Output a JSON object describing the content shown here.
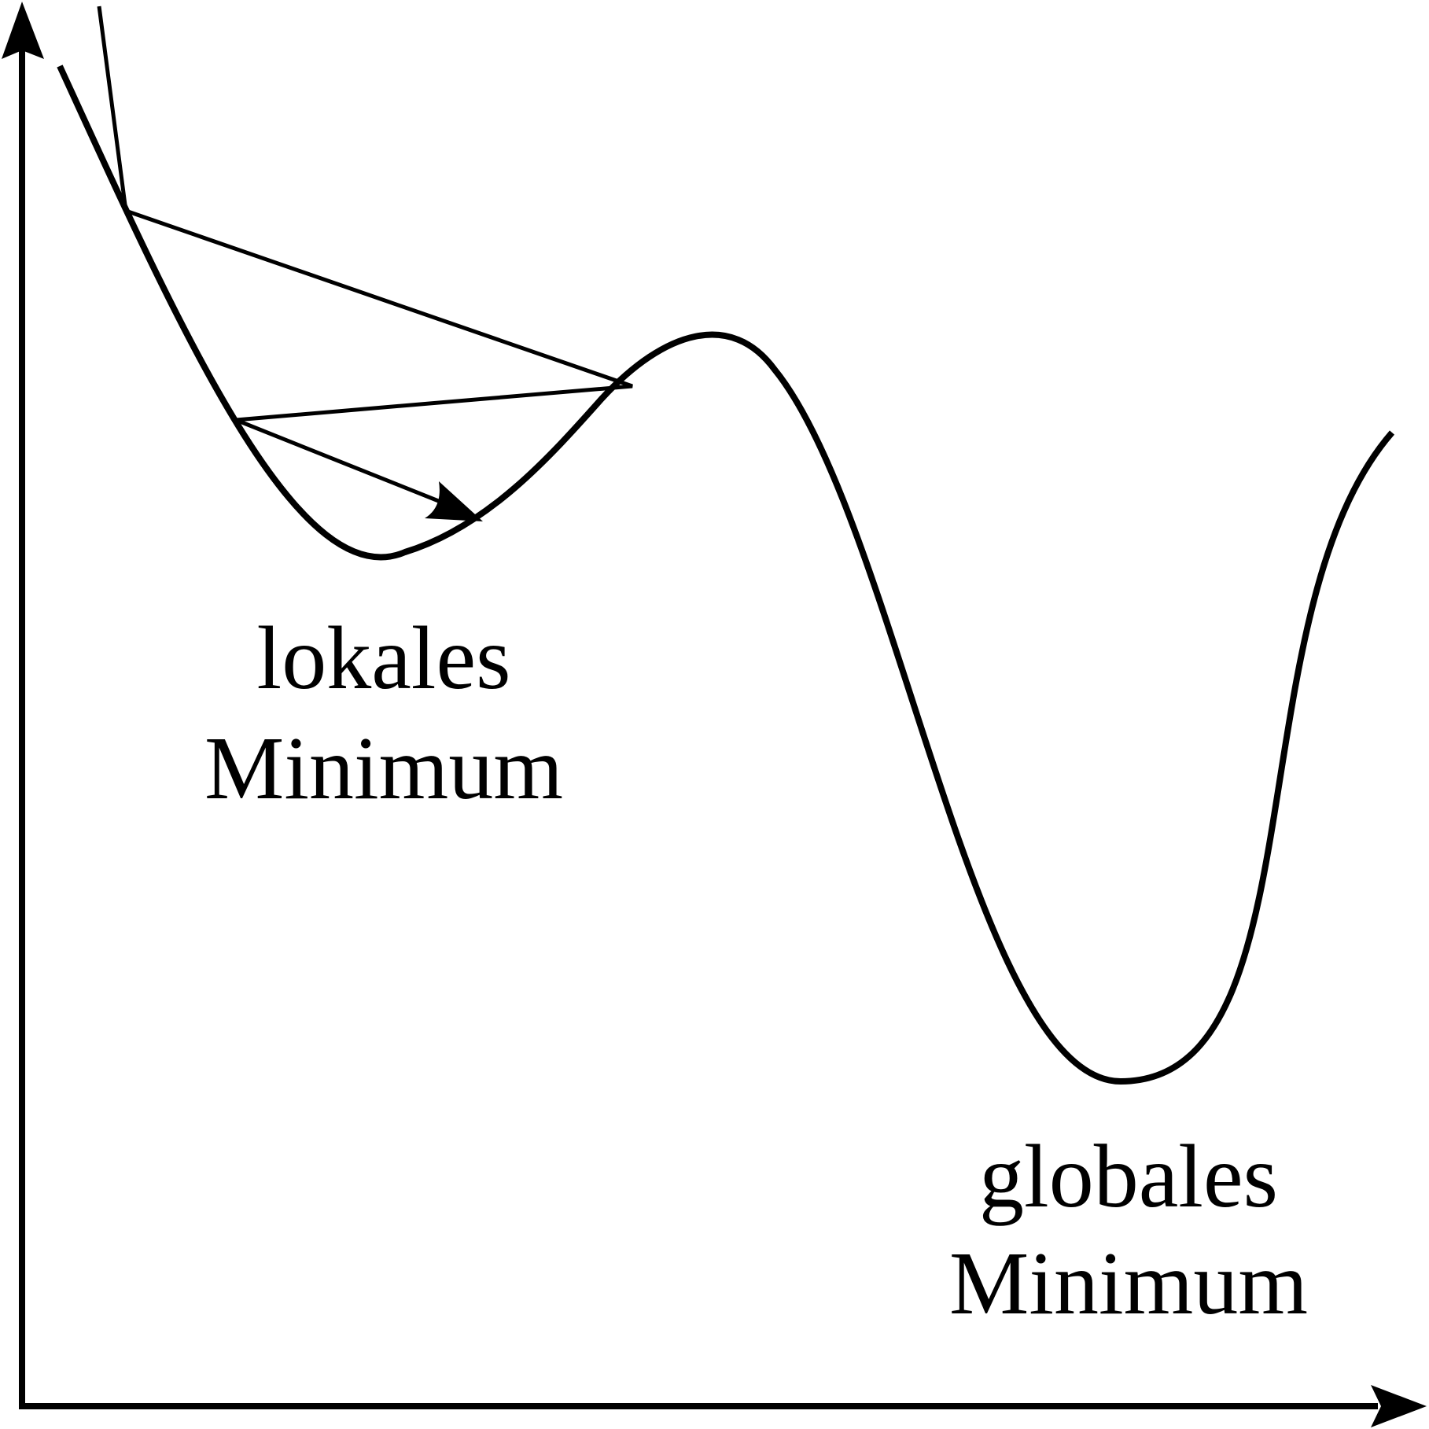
{
  "diagram": {
    "labels": {
      "local_minimum": {
        "line1": "lokales",
        "line2": "Minimum"
      },
      "global_minimum": {
        "line1": "globales",
        "line2": "Minimum"
      }
    },
    "colors": {
      "stroke": "#000000",
      "background": "#ffffff"
    }
  }
}
